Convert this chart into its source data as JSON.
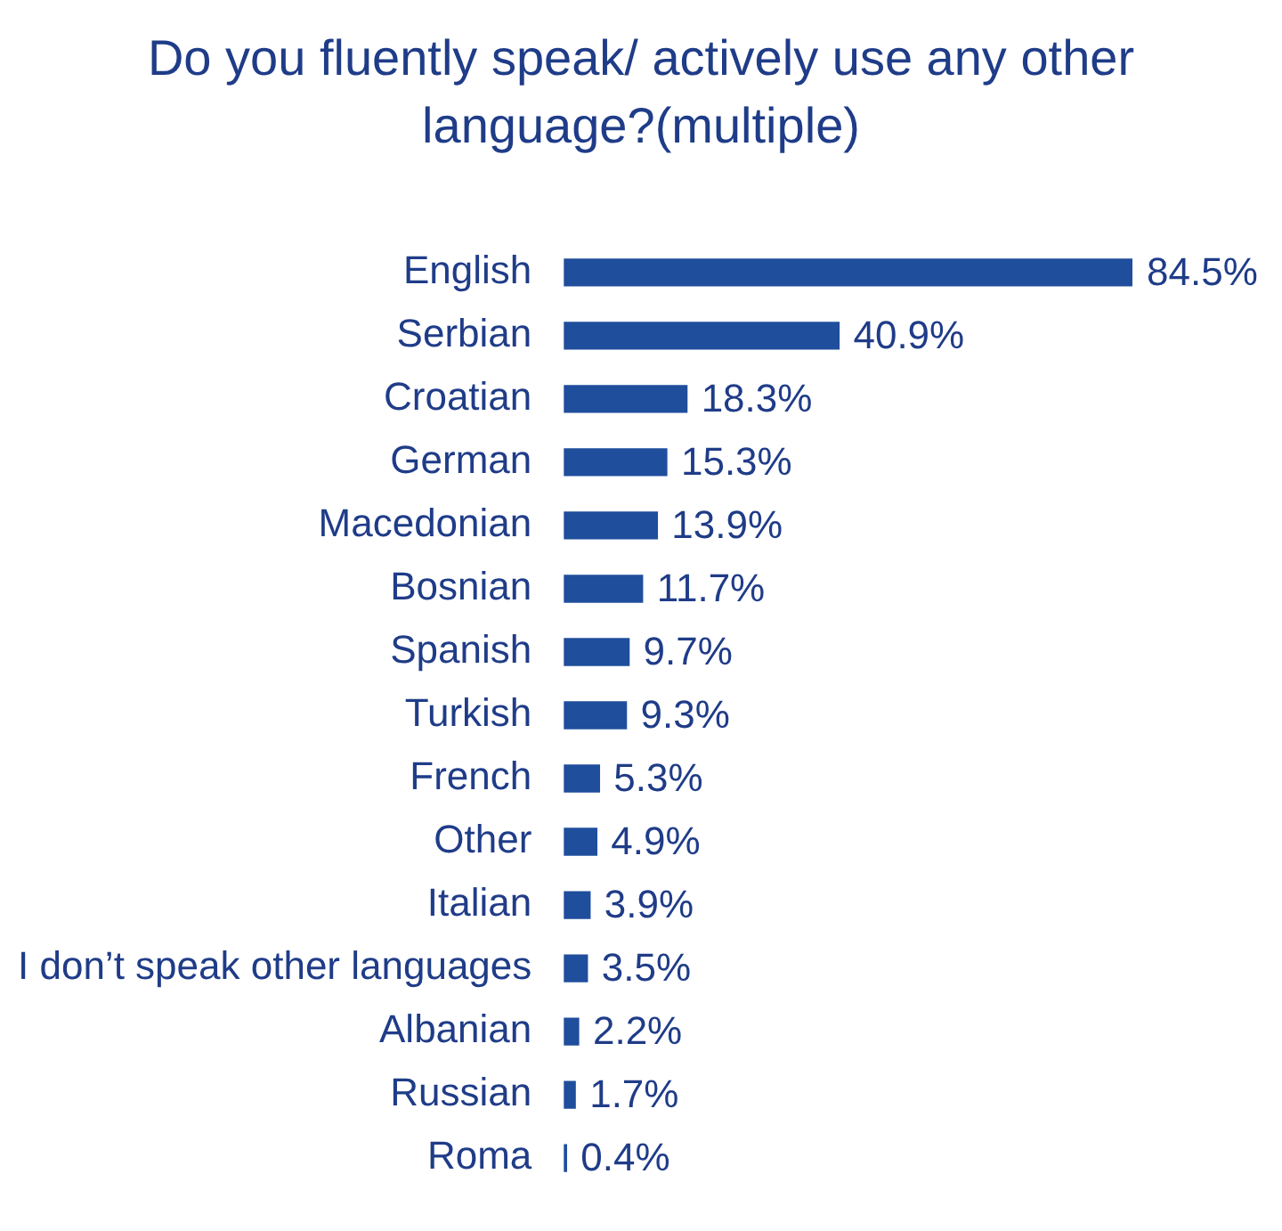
{
  "chart_data": {
    "type": "bar",
    "orientation": "horizontal",
    "title": "Do you fluently speak/ actively use any other language?(multiple)",
    "categories": [
      "English",
      "Serbian",
      "Croatian",
      "German",
      "Macedonian",
      "Bosnian",
      "Spanish",
      "Turkish",
      "French",
      "Other",
      "Italian",
      "I don’t speak other languages",
      "Albanian",
      "Russian",
      "Roma"
    ],
    "values": [
      84.5,
      40.9,
      18.3,
      15.3,
      13.9,
      11.7,
      9.7,
      9.3,
      5.3,
      4.9,
      3.9,
      3.5,
      2.2,
      1.7,
      0.4
    ],
    "value_labels": [
      "84.5%",
      "40.9%",
      "18.3%",
      "15.3%",
      "13.9%",
      "11.7%",
      "9.7%",
      "9.3%",
      "5.3%",
      "4.9%",
      "3.9%",
      "3.5%",
      "2.2%",
      "1.7%",
      "0.4%"
    ],
    "color": "#1f4e9c",
    "xlim": [
      0,
      84.5
    ],
    "grid": false,
    "legend": false
  }
}
